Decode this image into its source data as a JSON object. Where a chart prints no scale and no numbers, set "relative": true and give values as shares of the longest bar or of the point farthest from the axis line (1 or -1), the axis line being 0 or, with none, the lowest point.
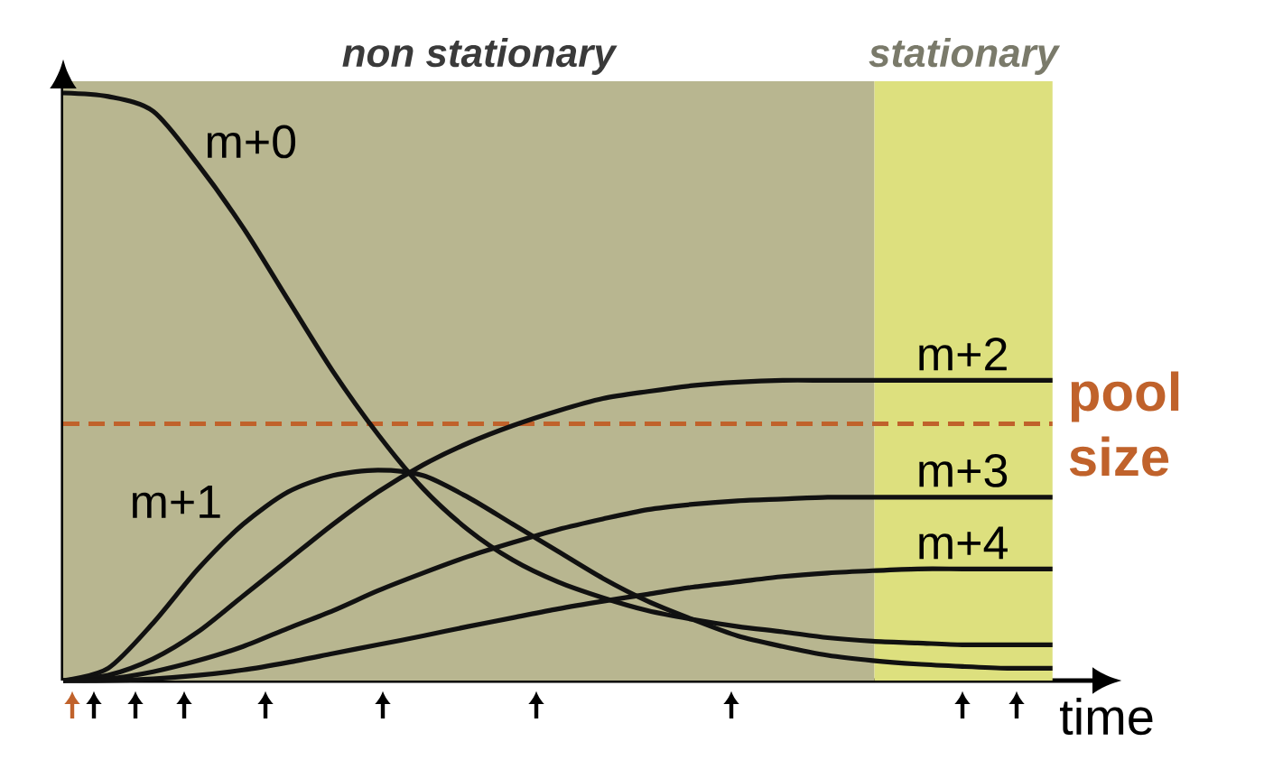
{
  "chart_data": {
    "type": "line",
    "relative": true,
    "xlabel": "time",
    "categories": [
      null,
      null,
      null,
      null,
      null,
      null,
      null,
      null,
      null,
      null,
      null,
      null,
      null,
      null,
      null,
      null,
      null,
      null,
      null,
      null,
      null,
      null,
      null
    ],
    "series": [
      {
        "name": "m+0",
        "color": "#111111",
        "values": [
          1.0,
          0.994,
          0.969,
          0.878,
          0.771,
          0.648,
          0.526,
          0.419,
          0.327,
          0.257,
          0.205,
          0.168,
          0.141,
          0.119,
          0.104,
          0.092,
          0.083,
          0.073,
          0.067,
          0.064,
          0.061,
          0.061,
          0.061
        ]
      },
      {
        "name": "m+1",
        "color": "#111111",
        "values": [
          0.0,
          0.021,
          0.098,
          0.19,
          0.266,
          0.321,
          0.349,
          0.358,
          0.349,
          0.312,
          0.266,
          0.22,
          0.174,
          0.135,
          0.104,
          0.076,
          0.058,
          0.043,
          0.034,
          0.028,
          0.024,
          0.021,
          0.021
        ]
      },
      {
        "name": "m+2",
        "color": "#111111",
        "values": [
          0.0,
          0.009,
          0.037,
          0.083,
          0.144,
          0.205,
          0.266,
          0.321,
          0.367,
          0.404,
          0.434,
          0.459,
          0.48,
          0.492,
          0.502,
          0.508,
          0.511,
          0.511,
          0.511,
          0.511,
          0.511,
          0.511,
          0.511
        ]
      },
      {
        "name": "m+3",
        "color": "#111111",
        "values": [
          0.0,
          0.003,
          0.015,
          0.034,
          0.058,
          0.089,
          0.119,
          0.153,
          0.183,
          0.211,
          0.235,
          0.257,
          0.275,
          0.291,
          0.3,
          0.306,
          0.309,
          0.312,
          0.312,
          0.312,
          0.312,
          0.312,
          0.312
        ]
      },
      {
        "name": "m+4",
        "color": "#111111",
        "values": [
          0.0,
          0.0,
          0.003,
          0.009,
          0.018,
          0.031,
          0.046,
          0.061,
          0.076,
          0.092,
          0.107,
          0.122,
          0.135,
          0.147,
          0.159,
          0.168,
          0.177,
          0.183,
          0.187,
          0.19,
          0.19,
          0.19,
          0.19
        ]
      }
    ],
    "ref_lines": [
      {
        "axis": "y",
        "value": 0.437,
        "label": "pool size",
        "color": "#c0622b",
        "line_style": "dashed"
      }
    ],
    "annotations": [
      "non stationary",
      "stationary"
    ],
    "marker": "none",
    "line_style": "solid"
  }
}
